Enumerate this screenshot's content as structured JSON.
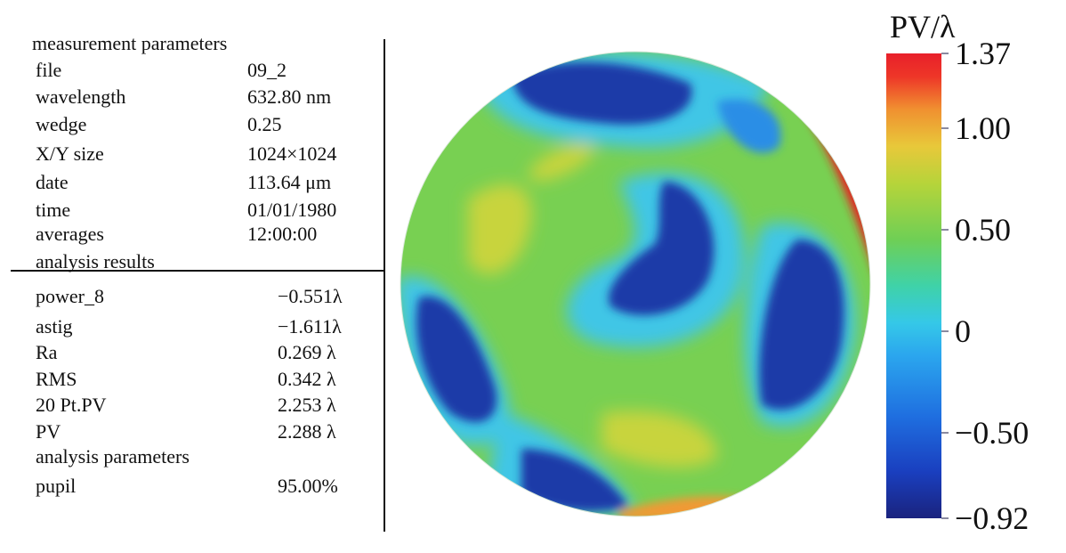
{
  "left_panel": {
    "measurement_heading": "measurement parameters",
    "measurement": [
      {
        "key": "file",
        "value": "09_2"
      },
      {
        "key": "wavelength",
        "value": "632.80 nm"
      },
      {
        "key": "wedge",
        "value": "0.25"
      },
      {
        "key": "X/Y size",
        "value": "1024×1024"
      },
      {
        "key": "date",
        "value": "113.64 μm"
      },
      {
        "key": "time",
        "value": "01/01/1980"
      },
      {
        "key": "averages",
        "value": "12:00:00"
      }
    ],
    "results_heading": "analysis results",
    "results": [
      {
        "key": "power_8",
        "value": "−0.551λ"
      },
      {
        "key": "astig",
        "value": "−1.611λ"
      },
      {
        "key": "Ra",
        "value": "0.269 λ"
      },
      {
        "key": "RMS",
        "value": "0.342 λ"
      },
      {
        "key": "20 Pt.PV",
        "value": "2.253 λ"
      },
      {
        "key": "PV",
        "value": "2.288 λ"
      }
    ],
    "analysis_parameters_heading": "analysis parameters",
    "parameters": [
      {
        "key": "pupil",
        "value": "95.00%"
      }
    ]
  },
  "colorbar": {
    "title": "PV/λ",
    "max": 1.37,
    "min": -0.92,
    "ticks": [
      {
        "label": "1.37",
        "value": 1.37
      },
      {
        "label": "1.00",
        "value": 1.0
      },
      {
        "label": "0.50",
        "value": 0.5
      },
      {
        "label": "0",
        "value": 0
      },
      {
        "label": "−0.50",
        "value": -0.5
      },
      {
        "label": "−0.92",
        "value": -0.92
      }
    ],
    "colors": [
      "#1a237e",
      "#1f6fe0",
      "#35c8e8",
      "#6fcf55",
      "#e8c83a",
      "#f09030",
      "#e8202a"
    ]
  },
  "surface_map": {
    "base_color": "#78d052",
    "colors": {
      "deep_blue": "#1c3aa8",
      "blue": "#2a8ee6",
      "cyan": "#40c6e6",
      "green": "#6dcc4e",
      "yellow": "#c8d43c",
      "orange": "#f09a34",
      "red": "#e42424"
    }
  }
}
